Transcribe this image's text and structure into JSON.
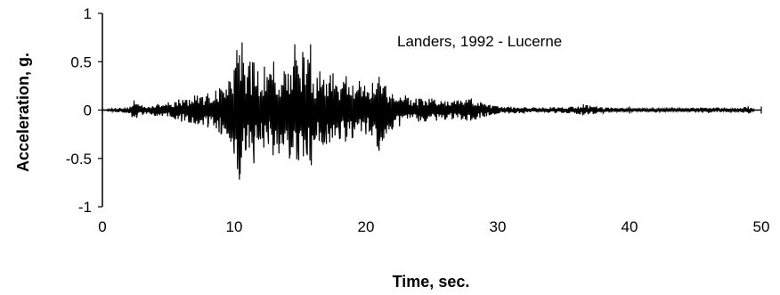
{
  "chart_data": {
    "type": "line",
    "title": "",
    "annotation": "Landers, 1992 - Lucerne",
    "xlabel": "Time, sec.",
    "ylabel": "Acceleration, g.",
    "xlim": [
      0,
      50
    ],
    "ylim": [
      -1,
      1
    ],
    "xticks": [
      0,
      10,
      20,
      30,
      40,
      50
    ],
    "yticks": [
      -1,
      -0.5,
      0,
      0.5,
      1
    ],
    "xtick_labels": [
      "0",
      "10",
      "20",
      "30",
      "40",
      "50"
    ],
    "ytick_labels": [
      "-1",
      "-0.5",
      "0",
      "0.5",
      "1"
    ],
    "grid": false,
    "series": [
      {
        "name": "",
        "x": [
          0,
          1.0,
          2.0,
          2.4,
          2.6,
          3.0,
          4.0,
          5.0,
          6.0,
          7.0,
          8.0,
          8.6,
          9.0,
          9.6,
          10.0,
          10.2,
          10.4,
          10.6,
          10.9,
          11.2,
          11.5,
          11.8,
          12.0,
          12.3,
          12.6,
          13.0,
          13.4,
          13.8,
          14.2,
          14.6,
          14.9,
          15.2,
          15.5,
          15.8,
          16.1,
          16.5,
          17.0,
          17.5,
          18.0,
          18.5,
          19.0,
          19.5,
          20.0,
          20.5,
          21.0,
          21.5,
          22.0,
          23.0,
          24.0,
          25.0,
          26.0,
          27.0,
          28.0,
          29.0,
          30.0,
          32.0,
          34.0,
          36.0,
          36.5,
          38.0,
          40.0,
          42.0,
          44.0,
          46.0,
          48.0,
          49.0,
          49.5
        ],
        "y": [
          0.0,
          0.02,
          -0.03,
          0.1,
          -0.08,
          0.05,
          -0.06,
          0.08,
          -0.12,
          0.15,
          -0.18,
          0.2,
          -0.25,
          0.3,
          -0.45,
          0.62,
          -0.72,
          0.7,
          -0.4,
          0.5,
          -0.55,
          0.4,
          -0.3,
          0.45,
          -0.35,
          0.5,
          -0.45,
          0.4,
          -0.5,
          0.68,
          -0.52,
          0.6,
          -0.45,
          0.68,
          -0.3,
          0.4,
          -0.35,
          0.38,
          -0.3,
          0.35,
          -0.28,
          0.3,
          -0.25,
          0.28,
          -0.42,
          0.25,
          -0.2,
          0.15,
          -0.12,
          0.12,
          -0.1,
          0.1,
          0.12,
          -0.07,
          0.04,
          -0.03,
          0.03,
          -0.04,
          0.06,
          -0.03,
          0.02,
          -0.02,
          0.02,
          -0.03,
          0.02,
          0.04,
          0.01
        ]
      }
    ]
  }
}
